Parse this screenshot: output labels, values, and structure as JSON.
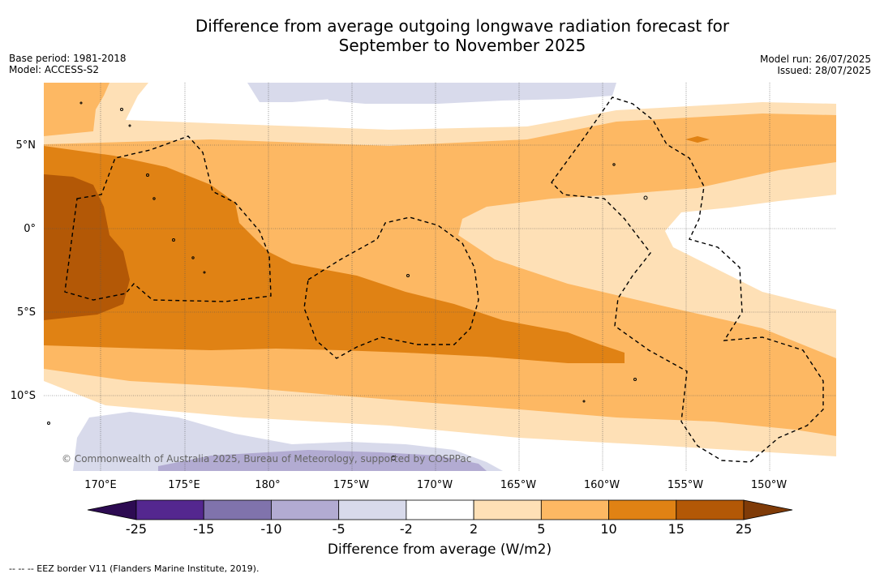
{
  "title": {
    "line1": "Difference from average outgoing longwave radiation forecast for",
    "line2": "September to November 2025"
  },
  "meta": {
    "base_period": "Base period: 1981-2018",
    "model": "Model: ACCESS-S2",
    "model_run": "Model run: 26/07/2025",
    "issued": "Issued: 28/07/2025"
  },
  "map": {
    "lat_labels": [
      "5°N",
      "0°",
      "5°S",
      "10°S"
    ],
    "lon_labels": [
      "170°E",
      "175°E",
      "180°",
      "175°W",
      "170°W",
      "165°W",
      "160°W",
      "155°W",
      "150°W"
    ],
    "copyright": "© Commonwealth of Australia 2025, Bureau of Meteorology, supported by COSPPac"
  },
  "colorbar": {
    "title": "Difference from average (W/m2)",
    "ticks": [
      "-25",
      "-15",
      "-10",
      "-5",
      "-2",
      "2",
      "5",
      "10",
      "15",
      "25"
    ],
    "colors": [
      "#2d0b52",
      "#54278f",
      "#8073ac",
      "#b2abd2",
      "#d8daeb",
      "#ffffff",
      "#fee0b6",
      "#fdb863",
      "#e08214",
      "#b35806",
      "#7f3b08"
    ]
  },
  "footnote": "--  --  -- EEZ border V11 (Flanders Marine Institute, 2019)."
}
